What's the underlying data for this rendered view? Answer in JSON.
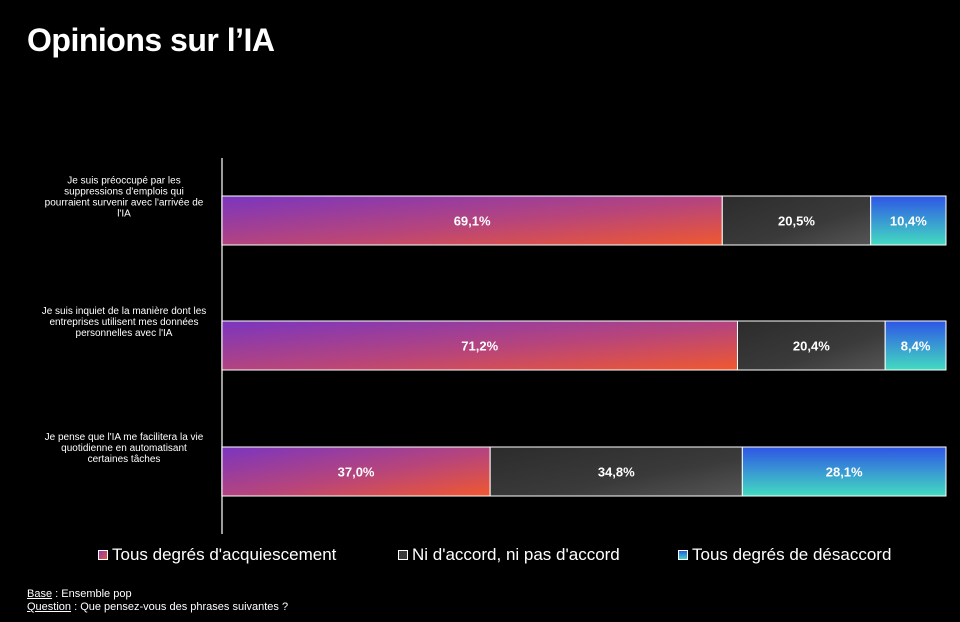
{
  "title": "Opinions sur l’IA",
  "chart_data": {
    "type": "bar",
    "orientation": "horizontal",
    "stacked": true,
    "categories": [
      [
        "Je suis préoccupé par les",
        "suppressions d'emplois qui",
        "pourraient survenir avec l'arrivée de",
        "l'IA"
      ],
      [
        "Je suis inquiet de la manière dont les",
        "entreprises utilisent mes données",
        "personnelles avec l'IA"
      ],
      [
        "Je pense que l'IA me facilitera la vie",
        "quotidienne en automatisant",
        "certaines tâches"
      ]
    ],
    "series": [
      {
        "name": "Tous degrés d'acquiescement",
        "values": [
          69.1,
          71.2,
          37.0
        ],
        "labels": [
          "69,1%",
          "71,2%",
          "37,0%"
        ],
        "color": "#e8543a"
      },
      {
        "name": "Ni d'accord, ni pas d'accord",
        "values": [
          20.5,
          20.4,
          34.8
        ],
        "labels": [
          "20,5%",
          "20,4%",
          "34,8%"
        ],
        "color": "#3a3a3a"
      },
      {
        "name": "Tous degrés de désaccord",
        "values": [
          10.4,
          8.4,
          28.1
        ],
        "labels": [
          "10,4%",
          "8,4%",
          "28,1%"
        ],
        "color": "#2e5be0"
      }
    ],
    "xlim": [
      0,
      100
    ],
    "grid": false,
    "legend_position": "bottom"
  },
  "footnotes": {
    "base_key": "Base",
    "base_text": " : Ensemble pop",
    "question_key": "Question",
    "question_text": " : Que pensez-vous des phrases suivantes ?"
  }
}
